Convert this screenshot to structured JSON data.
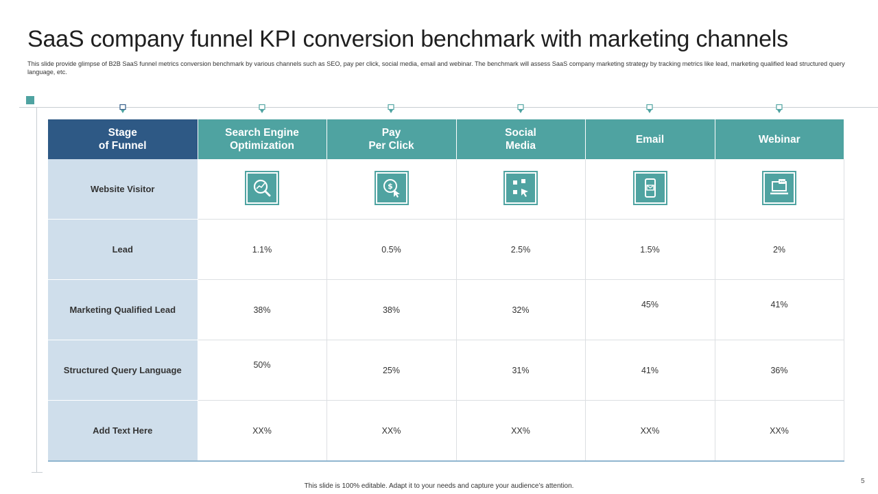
{
  "slide": {
    "title": "SaaS company funnel KPI conversion benchmark with marketing channels",
    "subtitle": "This slide provide glimpse of B2B SaaS funnel metrics conversion benchmark by various channels such as SEO, pay per click, social media, email and webinar. The benchmark will assess SaaS company marketing strategy by tracking metrics like lead, marketing qualified lead structured query language, etc.",
    "footer": "This slide is 100% editable. Adapt it to your needs and capture your audience’s attention.",
    "page_number": "5"
  },
  "colors": {
    "accent": "#4fa3a1",
    "stage_header": "#2e5985",
    "stage_cell": "#cfdeeb"
  },
  "table": {
    "headers": [
      "Stage\nof Funnel",
      "Search Engine\nOptimization",
      "Pay\nPer Click",
      "Social\nMedia",
      "Email",
      "Webinar"
    ],
    "icons": [
      "seo-analytics-icon",
      "pay-per-click-icon",
      "social-media-icon",
      "email-icon",
      "webinar-icon"
    ],
    "rows": [
      {
        "stage": "Website Visitor",
        "values": []
      },
      {
        "stage": "Lead",
        "values": [
          "1.1%",
          "0.5%",
          "2.5%",
          "1.5%",
          "2%"
        ]
      },
      {
        "stage": "Marketing Qualified Lead",
        "values": [
          "38%",
          "38%",
          "32%",
          "45%",
          "41%"
        ]
      },
      {
        "stage": "Structured Query Language",
        "values": [
          "50%",
          "25%",
          "31%",
          "41%",
          "36%"
        ]
      },
      {
        "stage": "Add Text Here",
        "values": [
          "XX%",
          "XX%",
          "XX%",
          "XX%",
          "XX%"
        ]
      }
    ]
  }
}
